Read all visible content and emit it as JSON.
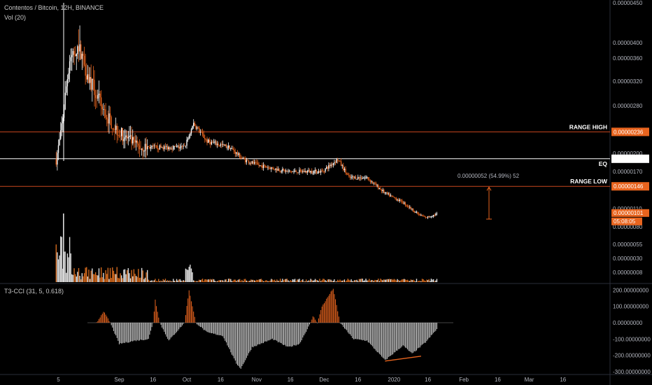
{
  "header": {
    "title": "Contentos / Bitcoin, 12H, BINANCE",
    "volume_label": "Vol (20)",
    "cci_label": "T3-CCI (31, 5, 0.618)"
  },
  "colors": {
    "background": "#000000",
    "candle_up": "#ffffff",
    "candle_down": "#e8641e",
    "range_line": "#c8461e",
    "eq_line": "#ffffff",
    "badge": "#e8641e",
    "cci_positive": "#e8641e",
    "cci_negative": "#cccccc",
    "divergence": "#e8641e"
  },
  "chart_data": [
    {
      "type": "candlestick",
      "name": "price",
      "title": "Contentos / Bitcoin, 12H, BINANCE",
      "x_ticks": [
        "5",
        "Sep",
        "16",
        "Oct",
        "16",
        "Nov",
        "16",
        "Dec",
        "16",
        "2020",
        "16",
        "Feb",
        "16",
        "Mar",
        "16"
      ],
      "y_ticks": [
        "0.00000450",
        "0.00000400",
        "0.00000360",
        "0.00000320",
        "0.00000280",
        "0.00000200",
        "0.00000170",
        "0.00000110",
        "0.00000080"
      ],
      "ylim": [
        7e-07,
        4.52e-06
      ],
      "levels": [
        {
          "label": "RANGE HIGH",
          "value": 2.36e-06,
          "tag": "0.00000236"
        },
        {
          "label": "EQ",
          "value": 1.91e-06,
          "tag": "0.00000191"
        },
        {
          "label": "RANGE LOW",
          "value": 1.46e-06,
          "tag": "0.00000146"
        }
      ],
      "current_price_tag": "0.00000101",
      "countdown": "05:08:05",
      "measure_label": "0.00000052 (54.99%) 52",
      "series_points": [
        {
          "date": "2019-08-04",
          "value": 1.9e-06
        },
        {
          "date": "2019-08-06",
          "value": 2.3e-06
        },
        {
          "date": "2019-08-10",
          "value": 3.6e-06
        },
        {
          "date": "2019-08-14",
          "value": 3.9e-06
        },
        {
          "date": "2019-08-18",
          "value": 3.3e-06
        },
        {
          "date": "2019-08-25",
          "value": 2.7e-06
        },
        {
          "date": "2019-09-01",
          "value": 2.35e-06
        },
        {
          "date": "2019-09-10",
          "value": 2.1e-06
        },
        {
          "date": "2019-09-20",
          "value": 2.1e-06
        },
        {
          "date": "2019-09-30",
          "value": 2.1e-06
        },
        {
          "date": "2019-10-04",
          "value": 2.5e-06
        },
        {
          "date": "2019-10-10",
          "value": 2.2e-06
        },
        {
          "date": "2019-10-20",
          "value": 2.1e-06
        },
        {
          "date": "2019-10-26",
          "value": 1.9e-06
        },
        {
          "date": "2019-11-02",
          "value": 1.8e-06
        },
        {
          "date": "2019-11-15",
          "value": 1.7e-06
        },
        {
          "date": "2019-11-30",
          "value": 1.7e-06
        },
        {
          "date": "2019-12-07",
          "value": 1.9e-06
        },
        {
          "date": "2019-12-12",
          "value": 1.6e-06
        },
        {
          "date": "2019-12-20",
          "value": 1.6e-06
        },
        {
          "date": "2019-12-28",
          "value": 1.35e-06
        },
        {
          "date": "2020-01-05",
          "value": 1.2e-06
        },
        {
          "date": "2020-01-12",
          "value": 1e-06
        },
        {
          "date": "2020-01-15",
          "value": 9.5e-07
        },
        {
          "date": "2020-01-20",
          "value": 1.01e-06
        }
      ]
    },
    {
      "type": "bar",
      "name": "volume",
      "title": "Vol (20)",
      "y_ticks": [
        "0.00000055",
        "0.00000030",
        "0.00000008"
      ]
    },
    {
      "type": "bar",
      "name": "cci",
      "title": "T3-CCI (31, 5, 0.618)",
      "y_ticks": [
        "200.00000000",
        "100.00000000",
        "0.00000000",
        "-100.00000000",
        "-200.00000000",
        "-300.00000000"
      ],
      "ylim": [
        -300,
        200
      ],
      "points": [
        {
          "date": "2019-08-22",
          "value": 0
        },
        {
          "date": "2019-08-25",
          "value": 70
        },
        {
          "date": "2019-08-28",
          "value": 0
        },
        {
          "date": "2019-09-01",
          "value": -130
        },
        {
          "date": "2019-09-08",
          "value": -110
        },
        {
          "date": "2019-09-14",
          "value": -100
        },
        {
          "date": "2019-09-16",
          "value": 0
        },
        {
          "date": "2019-09-17",
          "value": 140
        },
        {
          "date": "2019-09-19",
          "value": 0
        },
        {
          "date": "2019-09-23",
          "value": -110
        },
        {
          "date": "2019-09-30",
          "value": 0
        },
        {
          "date": "2019-10-02",
          "value": 200
        },
        {
          "date": "2019-10-05",
          "value": 0
        },
        {
          "date": "2019-10-10",
          "value": -60
        },
        {
          "date": "2019-10-17",
          "value": -80
        },
        {
          "date": "2019-10-23",
          "value": -250
        },
        {
          "date": "2019-10-25",
          "value": -280
        },
        {
          "date": "2019-10-30",
          "value": -150
        },
        {
          "date": "2019-11-08",
          "value": -100
        },
        {
          "date": "2019-11-15",
          "value": -150
        },
        {
          "date": "2019-11-20",
          "value": -130
        },
        {
          "date": "2019-11-25",
          "value": 0
        },
        {
          "date": "2019-11-26",
          "value": 40
        },
        {
          "date": "2019-11-28",
          "value": 0
        },
        {
          "date": "2019-11-30",
          "value": 100
        },
        {
          "date": "2019-12-05",
          "value": 210
        },
        {
          "date": "2019-12-08",
          "value": 0
        },
        {
          "date": "2019-12-14",
          "value": -100
        },
        {
          "date": "2019-12-20",
          "value": -110
        },
        {
          "date": "2019-12-28",
          "value": -230
        },
        {
          "date": "2020-01-05",
          "value": -140
        },
        {
          "date": "2020-01-09",
          "value": -190
        },
        {
          "date": "2020-01-15",
          "value": -120
        },
        {
          "date": "2020-01-20",
          "value": -40
        }
      ]
    }
  ]
}
